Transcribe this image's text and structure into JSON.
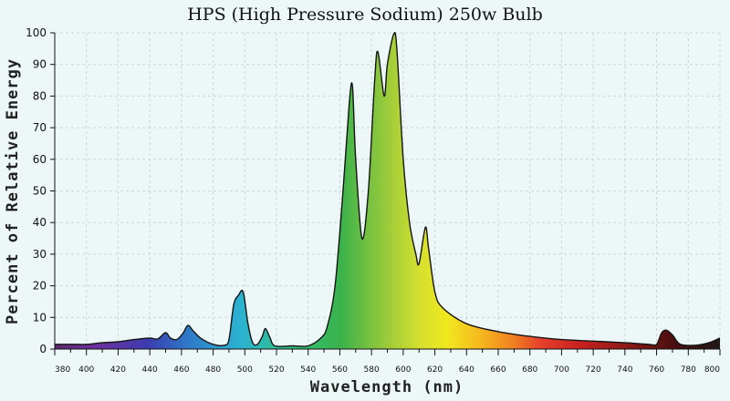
{
  "chart_data": {
    "type": "area",
    "title": "HPS (High Pressure Sodium) 250w Bulb",
    "xlabel": "Wavelength (nm)",
    "ylabel": "Percent of Relative Energy",
    "xlim": [
      380,
      800
    ],
    "ylim": [
      0,
      100
    ],
    "grid": true,
    "xticks": [
      380,
      400,
      420,
      440,
      460,
      480,
      500,
      520,
      540,
      560,
      580,
      600,
      620,
      640,
      660,
      680,
      700,
      720,
      740,
      760,
      780,
      800
    ],
    "yticks": [
      0,
      10,
      20,
      30,
      40,
      50,
      60,
      70,
      80,
      90,
      100
    ],
    "fill": "visible spectrum gradient by wavelength",
    "series": [
      {
        "points": [
          [
            380,
            1.5
          ],
          [
            390,
            1.5
          ],
          [
            400,
            1.5
          ],
          [
            410,
            2
          ],
          [
            420,
            2.3
          ],
          [
            430,
            3
          ],
          [
            440,
            3.5
          ],
          [
            445,
            3.2
          ],
          [
            450,
            5.2
          ],
          [
            453,
            3.5
          ],
          [
            457,
            3
          ],
          [
            461,
            5
          ],
          [
            464,
            7.5
          ],
          [
            467,
            6
          ],
          [
            472,
            3.5
          ],
          [
            480,
            1.5
          ],
          [
            487,
            1.2
          ],
          [
            490,
            3
          ],
          [
            493,
            14
          ],
          [
            496,
            17
          ],
          [
            499,
            18
          ],
          [
            502,
            8
          ],
          [
            505,
            2
          ],
          [
            508,
            1.5
          ],
          [
            511,
            4
          ],
          [
            513,
            6.5
          ],
          [
            516,
            3.5
          ],
          [
            519,
            1
          ],
          [
            530,
            1
          ],
          [
            540,
            1
          ],
          [
            548,
            3.5
          ],
          [
            552,
            7
          ],
          [
            557,
            20
          ],
          [
            562,
            50
          ],
          [
            566,
            78
          ],
          [
            568,
            83
          ],
          [
            570,
            60
          ],
          [
            574,
            35
          ],
          [
            578,
            50
          ],
          [
            582,
            85
          ],
          [
            584,
            94
          ],
          [
            588,
            80
          ],
          [
            590,
            90
          ],
          [
            594,
            99.5
          ],
          [
            596,
            95
          ],
          [
            600,
            60
          ],
          [
            604,
            40
          ],
          [
            608,
            30
          ],
          [
            610,
            27
          ],
          [
            614,
            38.5
          ],
          [
            616,
            32
          ],
          [
            620,
            18
          ],
          [
            625,
            13
          ],
          [
            640,
            8
          ],
          [
            660,
            5.5
          ],
          [
            680,
            4
          ],
          [
            700,
            3
          ],
          [
            720,
            2.5
          ],
          [
            740,
            2
          ],
          [
            755,
            1.5
          ],
          [
            760,
            1.5
          ],
          [
            763,
            5
          ],
          [
            766,
            6
          ],
          [
            770,
            4.5
          ],
          [
            775,
            1.5
          ],
          [
            785,
            1.2
          ],
          [
            793,
            2
          ],
          [
            800,
            3.5
          ]
        ]
      }
    ]
  }
}
